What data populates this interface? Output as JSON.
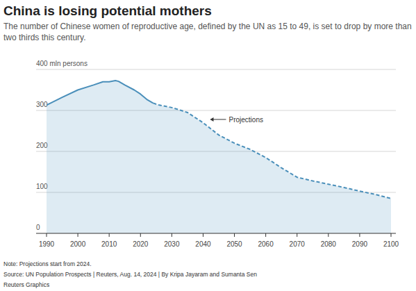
{
  "chart_data": {
    "type": "area",
    "title": "China is losing potential mothers",
    "subtitle": [
      "The number of Chinese women of reproductive age, defined by the UN as 15 to 49, is set to drop by more than",
      "two thirds this century."
    ],
    "x": [
      1990,
      1995,
      2000,
      2005,
      2008,
      2010,
      2012,
      2013,
      2015,
      2018,
      2020,
      2022,
      2024,
      2026,
      2030,
      2033,
      2035,
      2040,
      2045,
      2050,
      2055,
      2060,
      2065,
      2070,
      2075,
      2080,
      2085,
      2090,
      2095,
      2100
    ],
    "series": [
      {
        "color": "#4a8fba",
        "values": [
          313,
          332,
          350,
          362,
          370,
          370,
          373,
          371,
          362,
          350,
          340,
          327,
          318,
          313,
          307,
          300,
          295,
          270,
          240,
          220,
          205,
          185,
          160,
          137,
          128,
          120,
          112,
          103,
          95,
          85
        ]
      }
    ],
    "projection_start": 2024,
    "xlim": [
      1990,
      2100
    ],
    "xticks": [
      1990,
      2000,
      2010,
      2020,
      2030,
      2040,
      2050,
      2060,
      2070,
      2080,
      2090,
      2100
    ],
    "ylim": [
      0,
      400
    ],
    "yticks": [
      0,
      100,
      200,
      300,
      {
        "value": 400,
        "label": "400 mln persons"
      }
    ],
    "grid": true,
    "annotations": [
      {
        "text": "Projections",
        "x": 2042,
        "y": 278
      }
    ],
    "note": "Note: Projections start from 2024.",
    "source": "Source: UN Population Prospects | Reuters, Aug. 14, 2024 | By Kripa Jayaram and Sumanta Sen",
    "credit": "Reuters Graphics"
  }
}
